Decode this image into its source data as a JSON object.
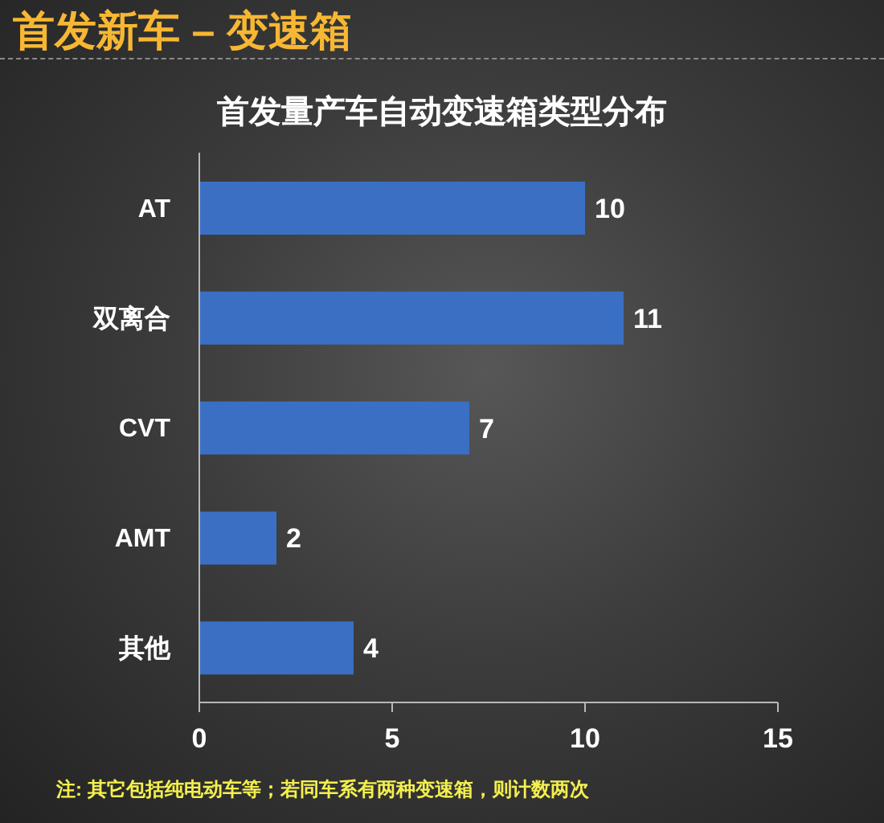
{
  "chart_data": {
    "type": "bar",
    "orientation": "horizontal",
    "title": "首发新车 – 变速箱",
    "subtitle": "首发量产车自动变速箱类型分布",
    "categories": [
      "AT",
      "双离合",
      "CVT",
      "AMT",
      "其他"
    ],
    "values": [
      10,
      11,
      7,
      2,
      4
    ],
    "color": "#3a6fc4",
    "xlim": [
      0,
      15
    ],
    "xticks": [
      0,
      5,
      10,
      15
    ],
    "data_labels": true,
    "grid": false,
    "annotations": [
      "注: 其它包括纯电动车等；若同车系有两种变速箱，则计数两次"
    ]
  }
}
